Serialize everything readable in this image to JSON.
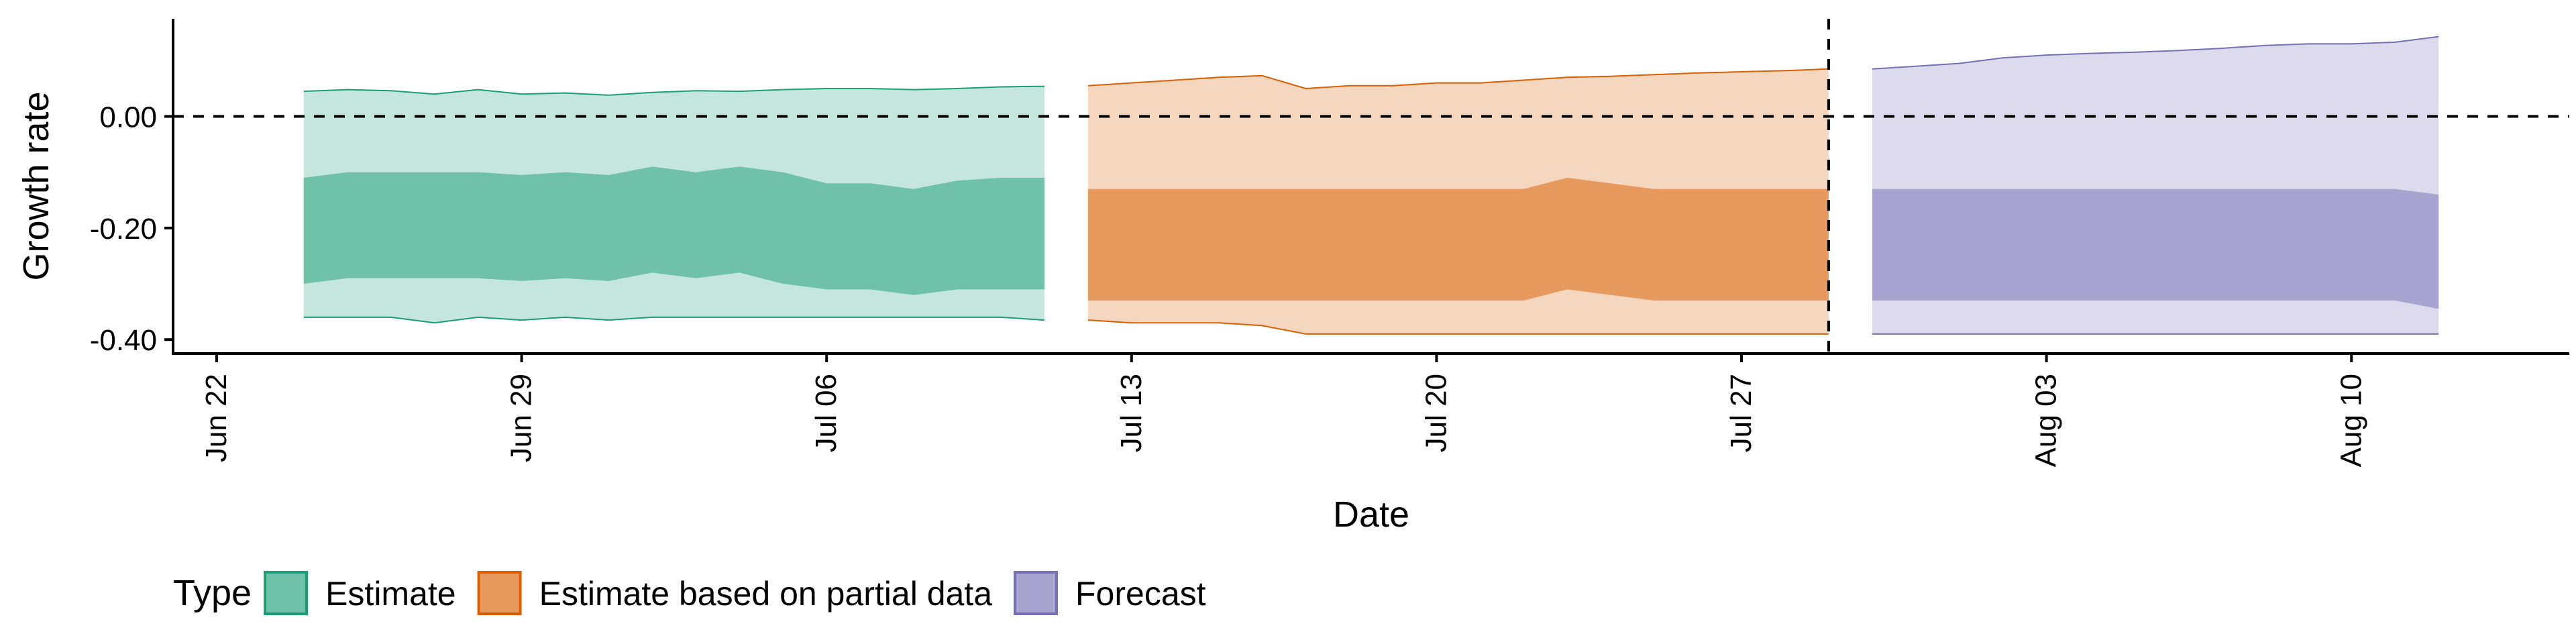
{
  "chart_data": {
    "type": "area",
    "xlabel": "Date",
    "ylabel": "Growth rate",
    "x_ticks": [
      {
        "date": "2020-06-22",
        "label": "Jun 22"
      },
      {
        "date": "2020-06-29",
        "label": "Jun 29"
      },
      {
        "date": "2020-07-06",
        "label": "Jul 06"
      },
      {
        "date": "2020-07-13",
        "label": "Jul 13"
      },
      {
        "date": "2020-07-20",
        "label": "Jul 20"
      },
      {
        "date": "2020-07-27",
        "label": "Jul 27"
      },
      {
        "date": "2020-08-03",
        "label": "Aug 03"
      },
      {
        "date": "2020-08-10",
        "label": "Aug 10"
      }
    ],
    "xlim": [
      "2020-06-21",
      "2020-08-15"
    ],
    "y_ticks": [
      {
        "value": 0.0,
        "label": "0.00"
      },
      {
        "value": -0.2,
        "label": "-0.20"
      },
      {
        "value": -0.4,
        "label": "-0.40"
      }
    ],
    "ylim": [
      -0.425,
      0.175
    ],
    "hline": 0.0,
    "vline": "2020-07-29",
    "legend_position": "bottom",
    "legend": {
      "title": "Type",
      "entries": [
        {
          "label": "Estimate",
          "fill": "#6fc1a8",
          "stroke": "#1b9e77"
        },
        {
          "label": "Estimate based on partial data",
          "fill": "#e69a5e",
          "stroke": "#d95f02"
        },
        {
          "label": "Forecast",
          "fill": "#a8a4d0",
          "stroke": "#7570b3"
        }
      ]
    },
    "series": [
      {
        "name": "Estimate",
        "outer_fill": "#c5e6dc",
        "inner_fill": "#6fc1a8",
        "stroke": "#1b9e77",
        "points": [
          {
            "date": "2020-06-24",
            "upper90": 0.045,
            "upper50": -0.11,
            "lower50": -0.3,
            "lower90": -0.36
          },
          {
            "date": "2020-06-25",
            "upper90": 0.048,
            "upper50": -0.1,
            "lower50": -0.29,
            "lower90": -0.36
          },
          {
            "date": "2020-06-26",
            "upper90": 0.046,
            "upper50": -0.1,
            "lower50": -0.29,
            "lower90": -0.36
          },
          {
            "date": "2020-06-27",
            "upper90": 0.04,
            "upper50": -0.1,
            "lower50": -0.29,
            "lower90": -0.37
          },
          {
            "date": "2020-06-28",
            "upper90": 0.048,
            "upper50": -0.1,
            "lower50": -0.29,
            "lower90": -0.36
          },
          {
            "date": "2020-06-29",
            "upper90": 0.04,
            "upper50": -0.105,
            "lower50": -0.295,
            "lower90": -0.365
          },
          {
            "date": "2020-06-30",
            "upper90": 0.042,
            "upper50": -0.1,
            "lower50": -0.29,
            "lower90": -0.36
          },
          {
            "date": "2020-07-01",
            "upper90": 0.038,
            "upper50": -0.105,
            "lower50": -0.295,
            "lower90": -0.365
          },
          {
            "date": "2020-07-02",
            "upper90": 0.043,
            "upper50": -0.09,
            "lower50": -0.28,
            "lower90": -0.36
          },
          {
            "date": "2020-07-03",
            "upper90": 0.046,
            "upper50": -0.1,
            "lower50": -0.29,
            "lower90": -0.36
          },
          {
            "date": "2020-07-04",
            "upper90": 0.045,
            "upper50": -0.09,
            "lower50": -0.28,
            "lower90": -0.36
          },
          {
            "date": "2020-07-05",
            "upper90": 0.048,
            "upper50": -0.1,
            "lower50": -0.3,
            "lower90": -0.36
          },
          {
            "date": "2020-07-06",
            "upper90": 0.05,
            "upper50": -0.12,
            "lower50": -0.31,
            "lower90": -0.36
          },
          {
            "date": "2020-07-07",
            "upper90": 0.05,
            "upper50": -0.12,
            "lower50": -0.31,
            "lower90": -0.36
          },
          {
            "date": "2020-07-08",
            "upper90": 0.048,
            "upper50": -0.13,
            "lower50": -0.32,
            "lower90": -0.36
          },
          {
            "date": "2020-07-09",
            "upper90": 0.05,
            "upper50": -0.115,
            "lower50": -0.31,
            "lower90": -0.36
          },
          {
            "date": "2020-07-10",
            "upper90": 0.053,
            "upper50": -0.11,
            "lower50": -0.31,
            "lower90": -0.36
          },
          {
            "date": "2020-07-11",
            "upper90": 0.054,
            "upper50": -0.11,
            "lower50": -0.31,
            "lower90": -0.365
          }
        ]
      },
      {
        "name": "Estimate based on partial data",
        "outer_fill": "#f5d6bf",
        "inner_fill": "#e69a5e",
        "stroke": "#d95f02",
        "points": [
          {
            "date": "2020-07-12",
            "upper90": 0.055,
            "upper50": -0.13,
            "lower50": -0.33,
            "lower90": -0.365
          },
          {
            "date": "2020-07-13",
            "upper90": 0.06,
            "upper50": -0.13,
            "lower50": -0.33,
            "lower90": -0.37
          },
          {
            "date": "2020-07-14",
            "upper90": 0.065,
            "upper50": -0.13,
            "lower50": -0.33,
            "lower90": -0.37
          },
          {
            "date": "2020-07-15",
            "upper90": 0.07,
            "upper50": -0.13,
            "lower50": -0.33,
            "lower90": -0.37
          },
          {
            "date": "2020-07-16",
            "upper90": 0.073,
            "upper50": -0.13,
            "lower50": -0.33,
            "lower90": -0.375
          },
          {
            "date": "2020-07-17",
            "upper90": 0.05,
            "upper50": -0.13,
            "lower50": -0.33,
            "lower90": -0.39
          },
          {
            "date": "2020-07-18",
            "upper90": 0.055,
            "upper50": -0.13,
            "lower50": -0.33,
            "lower90": -0.39
          },
          {
            "date": "2020-07-19",
            "upper90": 0.055,
            "upper50": -0.13,
            "lower50": -0.33,
            "lower90": -0.39
          },
          {
            "date": "2020-07-20",
            "upper90": 0.06,
            "upper50": -0.13,
            "lower50": -0.33,
            "lower90": -0.39
          },
          {
            "date": "2020-07-21",
            "upper90": 0.06,
            "upper50": -0.13,
            "lower50": -0.33,
            "lower90": -0.39
          },
          {
            "date": "2020-07-22",
            "upper90": 0.065,
            "upper50": -0.13,
            "lower50": -0.33,
            "lower90": -0.39
          },
          {
            "date": "2020-07-23",
            "upper90": 0.07,
            "upper50": -0.11,
            "lower50": -0.31,
            "lower90": -0.39
          },
          {
            "date": "2020-07-24",
            "upper90": 0.072,
            "upper50": -0.12,
            "lower50": -0.32,
            "lower90": -0.39
          },
          {
            "date": "2020-07-25",
            "upper90": 0.075,
            "upper50": -0.13,
            "lower50": -0.33,
            "lower90": -0.39
          },
          {
            "date": "2020-07-26",
            "upper90": 0.078,
            "upper50": -0.13,
            "lower50": -0.33,
            "lower90": -0.39
          },
          {
            "date": "2020-07-27",
            "upper90": 0.08,
            "upper50": -0.13,
            "lower50": -0.33,
            "lower90": -0.39
          },
          {
            "date": "2020-07-28",
            "upper90": 0.082,
            "upper50": -0.13,
            "lower50": -0.33,
            "lower90": -0.39
          },
          {
            "date": "2020-07-29",
            "upper90": 0.085,
            "upper50": -0.13,
            "lower50": -0.33,
            "lower90": -0.39
          }
        ]
      },
      {
        "name": "Forecast",
        "outer_fill": "#dcdaec",
        "inner_fill": "#a8a4d0",
        "stroke": "#7570b3",
        "points": [
          {
            "date": "2020-07-30",
            "upper90": 0.085,
            "upper50": -0.13,
            "lower50": -0.33,
            "lower90": -0.39
          },
          {
            "date": "2020-07-31",
            "upper90": 0.09,
            "upper50": -0.13,
            "lower50": -0.33,
            "lower90": -0.39
          },
          {
            "date": "2020-08-01",
            "upper90": 0.095,
            "upper50": -0.13,
            "lower50": -0.33,
            "lower90": -0.39
          },
          {
            "date": "2020-08-02",
            "upper90": 0.105,
            "upper50": -0.13,
            "lower50": -0.33,
            "lower90": -0.39
          },
          {
            "date": "2020-08-03",
            "upper90": 0.11,
            "upper50": -0.13,
            "lower50": -0.33,
            "lower90": -0.39
          },
          {
            "date": "2020-08-04",
            "upper90": 0.113,
            "upper50": -0.13,
            "lower50": -0.33,
            "lower90": -0.39
          },
          {
            "date": "2020-08-05",
            "upper90": 0.115,
            "upper50": -0.13,
            "lower50": -0.33,
            "lower90": -0.39
          },
          {
            "date": "2020-08-06",
            "upper90": 0.118,
            "upper50": -0.13,
            "lower50": -0.33,
            "lower90": -0.39
          },
          {
            "date": "2020-08-07",
            "upper90": 0.122,
            "upper50": -0.13,
            "lower50": -0.33,
            "lower90": -0.39
          },
          {
            "date": "2020-08-08",
            "upper90": 0.127,
            "upper50": -0.13,
            "lower50": -0.33,
            "lower90": -0.39
          },
          {
            "date": "2020-08-09",
            "upper90": 0.13,
            "upper50": -0.13,
            "lower50": -0.33,
            "lower90": -0.39
          },
          {
            "date": "2020-08-10",
            "upper90": 0.13,
            "upper50": -0.13,
            "lower50": -0.33,
            "lower90": -0.39
          },
          {
            "date": "2020-08-11",
            "upper90": 0.133,
            "upper50": -0.13,
            "lower50": -0.33,
            "lower90": -0.39
          },
          {
            "date": "2020-08-12",
            "upper90": 0.143,
            "upper50": -0.14,
            "lower50": -0.345,
            "lower90": -0.39
          }
        ]
      }
    ]
  }
}
